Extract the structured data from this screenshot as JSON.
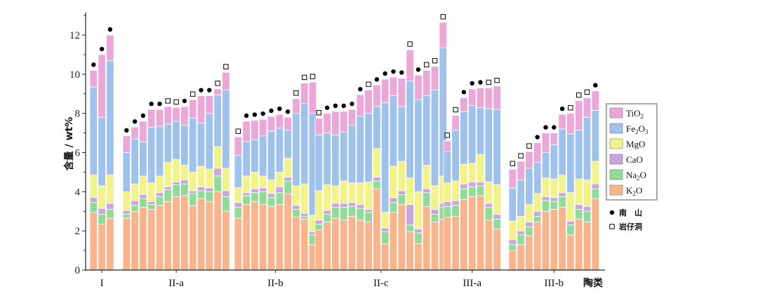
{
  "chart_data": {
    "type": "bar",
    "stacked": true,
    "ylabel": "含量 / wt%",
    "xlabel": "陶类",
    "ylim": [
      0,
      13
    ],
    "yticks": [
      0,
      2,
      4,
      6,
      8,
      10,
      12
    ],
    "colors": {
      "K2O": "#f9b48b",
      "Na2O": "#8fdc98",
      "CaO": "#c9a6dd",
      "MgO": "#f2f28a",
      "Fe2O3": "#9fc2ec",
      "TiO2": "#eba7d8"
    },
    "legend": [
      {
        "key": "TiO2",
        "base": "TiO",
        "sub": "2"
      },
      {
        "key": "Fe2O3",
        "base": "Fe",
        "sub": "2",
        "base2": "O",
        "sub2": "3"
      },
      {
        "key": "MgO",
        "base": "MgO",
        "sub": ""
      },
      {
        "key": "CaO",
        "base": "CaO",
        "sub": ""
      },
      {
        "key": "Na2O",
        "base": "Na",
        "sub": "2",
        "base2": "O"
      },
      {
        "key": "K2O",
        "base": "K",
        "sub": "2",
        "base2": "O"
      }
    ],
    "markers_legend": [
      {
        "symbol": "filled",
        "label": "南　山"
      },
      {
        "symbol": "open",
        "label": "岩仔洞"
      }
    ],
    "groups": [
      {
        "label": "I",
        "bars": [
          {
            "K2O": 2.95,
            "Na2O": 0.5,
            "CaO": 0.25,
            "MgO": 1.15,
            "Fe2O3": 4.5,
            "TiO2": 0.85,
            "site": "filled"
          },
          {
            "K2O": 2.35,
            "Na2O": 0.5,
            "CaO": 0.3,
            "MgO": 1.15,
            "Fe2O3": 3.5,
            "TiO2": 3.2,
            "site": "filled"
          },
          {
            "K2O": 2.65,
            "Na2O": 0.45,
            "CaO": 0.3,
            "MgO": 1.45,
            "Fe2O3": 5.85,
            "TiO2": 1.3,
            "site": "filled"
          }
        ]
      },
      {
        "label": "II-a",
        "bars": [
          {
            "K2O": 2.65,
            "Na2O": 0.2,
            "CaO": 0.2,
            "MgO": 0.95,
            "Fe2O3": 2.0,
            "TiO2": 0.85,
            "site": "filled"
          },
          {
            "K2O": 3.0,
            "Na2O": 0.3,
            "CaO": 0.25,
            "MgO": 0.85,
            "Fe2O3": 2.3,
            "TiO2": 0.6,
            "site": "filled"
          },
          {
            "K2O": 3.2,
            "Na2O": 0.45,
            "CaO": 0.2,
            "MgO": 0.95,
            "Fe2O3": 1.75,
            "TiO2": 1.05,
            "site": "filled"
          },
          {
            "K2O": 3.1,
            "Na2O": 0.25,
            "CaO": 0.15,
            "MgO": 0.95,
            "Fe2O3": 2.85,
            "TiO2": 0.9,
            "site": "filled"
          },
          {
            "K2O": 3.3,
            "Na2O": 0.45,
            "CaO": 0.2,
            "MgO": 0.85,
            "Fe2O3": 2.55,
            "TiO2": 0.85,
            "site": "filled"
          },
          {
            "K2O": 3.5,
            "Na2O": 0.6,
            "CaO": 0.15,
            "MgO": 1.25,
            "Fe2O3": 1.95,
            "TiO2": 0.9,
            "site": "open"
          },
          {
            "K2O": 3.75,
            "Na2O": 0.6,
            "CaO": 0.15,
            "MgO": 1.15,
            "Fe2O3": 1.95,
            "TiO2": 0.7,
            "site": "open"
          },
          {
            "K2O": 3.8,
            "Na2O": 0.6,
            "CaO": 0.2,
            "MgO": 0.75,
            "Fe2O3": 2.05,
            "TiO2": 0.95,
            "site": "filled"
          },
          {
            "K2O": 3.3,
            "Na2O": 0.6,
            "CaO": 0.15,
            "MgO": 0.95,
            "Fe2O3": 2.75,
            "TiO2": 0.95,
            "site": "open"
          },
          {
            "K2O": 3.65,
            "Na2O": 0.4,
            "CaO": 0.2,
            "MgO": 1.05,
            "Fe2O3": 2.2,
            "TiO2": 1.4,
            "site": "filled"
          },
          {
            "K2O": 3.5,
            "Na2O": 0.5,
            "CaO": 0.2,
            "MgO": 0.95,
            "Fe2O3": 2.85,
            "TiO2": 0.9,
            "site": "filled"
          },
          {
            "K2O": 4.0,
            "Na2O": 0.8,
            "CaO": 0.4,
            "MgO": 1.1,
            "Fe2O3": 2.65,
            "TiO2": 0.3,
            "site": "open"
          },
          {
            "K2O": 3.0,
            "Na2O": 0.75,
            "CaO": 0.3,
            "MgO": 1.15,
            "Fe2O3": 4.0,
            "TiO2": 0.9,
            "site": "open"
          }
        ]
      },
      {
        "label": "II-b",
        "bars": [
          {
            "K2O": 2.65,
            "Na2O": 0.55,
            "CaO": 0.25,
            "MgO": 0.75,
            "Fe2O3": 1.65,
            "TiO2": 0.95,
            "site": "open"
          },
          {
            "K2O": 3.35,
            "Na2O": 0.45,
            "CaO": 0.15,
            "MgO": 0.85,
            "Fe2O3": 1.75,
            "TiO2": 1.05,
            "site": "filled"
          },
          {
            "K2O": 3.5,
            "Na2O": 0.45,
            "CaO": 0.2,
            "MgO": 0.85,
            "Fe2O3": 1.65,
            "TiO2": 1.0,
            "site": "filled"
          },
          {
            "K2O": 3.35,
            "Na2O": 0.65,
            "CaO": 0.2,
            "MgO": 0.6,
            "Fe2O3": 2.05,
            "TiO2": 0.85,
            "site": "filled"
          },
          {
            "K2O": 3.25,
            "Na2O": 0.45,
            "CaO": 0.2,
            "MgO": 0.7,
            "Fe2O3": 2.5,
            "TiO2": 0.75,
            "site": "filled"
          },
          {
            "K2O": 3.35,
            "Na2O": 0.6,
            "CaO": 0.3,
            "MgO": 0.75,
            "Fe2O3": 2.25,
            "TiO2": 0.7,
            "site": "filled"
          },
          {
            "K2O": 3.9,
            "Na2O": 0.65,
            "CaO": 0.2,
            "MgO": 0.95,
            "Fe2O3": 1.45,
            "TiO2": 0.65,
            "site": "filled"
          },
          {
            "K2O": 2.7,
            "Na2O": 0.4,
            "CaO": 0.2,
            "MgO": 1.0,
            "Fe2O3": 3.7,
            "TiO2": 0.75,
            "site": "open"
          },
          {
            "K2O": 2.6,
            "Na2O": 0.15,
            "CaO": 0.15,
            "MgO": 1.5,
            "Fe2O3": 4.1,
            "TiO2": 1.05,
            "site": "open"
          },
          {
            "K2O": 1.3,
            "Na2O": 0.5,
            "CaO": 0.15,
            "MgO": 0.85,
            "Fe2O3": 5.2,
            "TiO2": 1.6,
            "site": "open"
          }
        ]
      },
      {
        "label": "II-c",
        "bars": [
          {
            "K2O": 2.05,
            "Na2O": 0.3,
            "CaO": 0.2,
            "MgO": 1.5,
            "Fe2O3": 2.85,
            "TiO2": 0.85,
            "site": "open"
          },
          {
            "K2O": 2.45,
            "Na2O": 0.4,
            "CaO": 0.2,
            "MgO": 1.3,
            "Fe2O3": 2.65,
            "TiO2": 1.0,
            "site": "filled"
          },
          {
            "K2O": 2.65,
            "Na2O": 0.55,
            "CaO": 0.2,
            "MgO": 0.9,
            "Fe2O3": 2.6,
            "TiO2": 1.2,
            "site": "filled"
          },
          {
            "K2O": 2.55,
            "Na2O": 0.65,
            "CaO": 0.2,
            "MgO": 1.15,
            "Fe2O3": 2.5,
            "TiO2": 1.05,
            "site": "filled"
          },
          {
            "K2O": 2.75,
            "Na2O": 0.5,
            "CaO": 0.2,
            "MgO": 1.0,
            "Fe2O3": 2.95,
            "TiO2": 0.8,
            "site": "filled"
          },
          {
            "K2O": 2.55,
            "Na2O": 0.6,
            "CaO": 0.2,
            "MgO": 1.1,
            "Fe2O3": 3.4,
            "TiO2": 1.1,
            "site": "filled"
          },
          {
            "K2O": 2.45,
            "Na2O": 0.5,
            "CaO": 0.15,
            "MgO": 1.4,
            "Fe2O3": 3.5,
            "TiO2": 1.2,
            "site": "open"
          },
          {
            "K2O": 4.15,
            "Na2O": 0.4,
            "CaO": 0.2,
            "MgO": 1.45,
            "Fe2O3": 2.15,
            "TiO2": 1.1,
            "site": "filled"
          },
          {
            "K2O": 1.35,
            "Na2O": 0.6,
            "CaO": 0.2,
            "MgO": 0.8,
            "Fe2O3": 5.6,
            "TiO2": 1.2,
            "site": "filled"
          },
          {
            "K2O": 2.95,
            "Na2O": 0.5,
            "CaO": 0.25,
            "MgO": 1.6,
            "Fe2O3": 3.6,
            "TiO2": 0.95,
            "site": "filled"
          },
          {
            "K2O": 3.35,
            "Na2O": 0.5,
            "CaO": 0.2,
            "MgO": 1.5,
            "Fe2O3": 2.8,
            "TiO2": 1.45,
            "site": "filled"
          },
          {
            "K2O": 1.95,
            "Na2O": 0.35,
            "CaO": 1.05,
            "MgO": 1.35,
            "Fe2O3": 4.95,
            "TiO2": 1.6,
            "site": "open"
          },
          {
            "K2O": 1.35,
            "Na2O": 0.55,
            "CaO": 0.2,
            "MgO": 1.9,
            "Fe2O3": 4.7,
            "TiO2": 1.25,
            "site": "filled"
          },
          {
            "K2O": 3.25,
            "Na2O": 0.7,
            "CaO": 0.2,
            "MgO": 1.2,
            "Fe2O3": 3.55,
            "TiO2": 1.3,
            "site": "open"
          },
          {
            "K2O": 2.45,
            "Na2O": 0.4,
            "CaO": 0.25,
            "MgO": 1.2,
            "Fe2O3": 4.9,
            "TiO2": 1.2,
            "site": "open"
          },
          {
            "K2O": 2.6,
            "Na2O": 0.6,
            "CaO": 0.2,
            "MgO": 1.4,
            "Fe2O3": 6.55,
            "TiO2": 1.3,
            "site": "open"
          }
        ]
      },
      {
        "label": "III-a",
        "bars": [
          {
            "K2O": 2.7,
            "Na2O": 0.55,
            "CaO": 0.25,
            "MgO": 0.95,
            "Fe2O3": 1.6,
            "TiO2": 0.55,
            "site": "open"
          },
          {
            "K2O": 2.75,
            "Na2O": 0.55,
            "CaO": 0.25,
            "MgO": 1.0,
            "Fe2O3": 2.6,
            "TiO2": 0.75,
            "site": "open"
          },
          {
            "K2O": 3.6,
            "Na2O": 0.55,
            "CaO": 0.25,
            "MgO": 1.0,
            "Fe2O3": 2.7,
            "TiO2": 0.7,
            "site": "filled"
          },
          {
            "K2O": 3.75,
            "Na2O": 0.5,
            "CaO": 0.25,
            "MgO": 0.95,
            "Fe2O3": 2.95,
            "TiO2": 0.85,
            "site": "filled"
          },
          {
            "K2O": 3.8,
            "Na2O": 0.5,
            "CaO": 0.2,
            "MgO": 1.4,
            "Fe2O3": 2.4,
            "TiO2": 1.0,
            "site": "filled"
          },
          {
            "K2O": 2.55,
            "Na2O": 0.65,
            "CaO": 0.2,
            "MgO": 1.1,
            "Fe2O3": 3.75,
            "TiO2": 1.05,
            "site": "open"
          },
          {
            "K2O": 2.1,
            "Na2O": 0.5,
            "CaO": 0.25,
            "MgO": 1.5,
            "Fe2O3": 3.85,
            "TiO2": 1.2,
            "site": "open"
          }
        ]
      },
      {
        "label": "III-b",
        "bars": [
          {
            "K2O": 1.0,
            "Na2O": 0.3,
            "CaO": 0.25,
            "MgO": 0.95,
            "Fe2O3": 1.7,
            "TiO2": 0.95,
            "site": "open"
          },
          {
            "K2O": 1.3,
            "Na2O": 0.5,
            "CaO": 0.2,
            "MgO": 0.75,
            "Fe2O3": 1.85,
            "TiO2": 0.95,
            "site": "open"
          },
          {
            "K2O": 1.75,
            "Na2O": 0.45,
            "CaO": 0.25,
            "MgO": 0.9,
            "Fe2O3": 1.85,
            "TiO2": 0.85,
            "site": "open"
          },
          {
            "K2O": 2.45,
            "Na2O": 0.3,
            "CaO": 0.25,
            "MgO": 0.9,
            "Fe2O3": 1.6,
            "TiO2": 1.0,
            "site": "filled"
          },
          {
            "K2O": 3.0,
            "Na2O": 0.55,
            "CaO": 0.2,
            "MgO": 0.95,
            "Fe2O3": 1.3,
            "TiO2": 1.0,
            "site": "filled"
          },
          {
            "K2O": 3.1,
            "Na2O": 0.4,
            "CaO": 0.2,
            "MgO": 0.95,
            "Fe2O3": 1.75,
            "TiO2": 0.6,
            "site": "filled"
          },
          {
            "K2O": 3.2,
            "Na2O": 0.55,
            "CaO": 0.2,
            "MgO": 0.9,
            "Fe2O3": 2.35,
            "TiO2": 0.75,
            "site": "filled"
          },
          {
            "K2O": 1.8,
            "Na2O": 0.5,
            "CaO": 0.2,
            "MgO": 1.45,
            "Fe2O3": 3.0,
            "TiO2": 1.05,
            "site": "open"
          },
          {
            "K2O": 2.6,
            "Na2O": 0.5,
            "CaO": 0.25,
            "MgO": 1.3,
            "Fe2O3": 2.5,
            "TiO2": 1.5,
            "site": "open"
          },
          {
            "K2O": 2.45,
            "Na2O": 0.55,
            "CaO": 0.25,
            "MgO": 1.35,
            "Fe2O3": 3.2,
            "TiO2": 1.0,
            "site": "open"
          },
          {
            "K2O": 3.65,
            "Na2O": 0.5,
            "CaO": 0.25,
            "MgO": 1.15,
            "Fe2O3": 2.6,
            "TiO2": 1.0,
            "site": "filled"
          }
        ]
      }
    ]
  }
}
